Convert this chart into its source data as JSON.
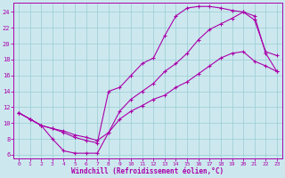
{
  "xlabel": "Windchill (Refroidissement éolien,°C)",
  "line_color": "#aa00aa",
  "bg_color": "#cce8ee",
  "grid_color": "#99ccd4",
  "xlim_min": -0.5,
  "xlim_max": 23.5,
  "ylim_min": 5.5,
  "ylim_max": 25.2,
  "xticks": [
    0,
    1,
    2,
    3,
    4,
    5,
    6,
    7,
    8,
    9,
    10,
    11,
    12,
    13,
    14,
    15,
    16,
    17,
    18,
    19,
    20,
    21,
    22,
    23
  ],
  "yticks": [
    6,
    8,
    10,
    12,
    14,
    16,
    18,
    20,
    22,
    24
  ],
  "line_upper_x": [
    0,
    1,
    2,
    3,
    4,
    5,
    6,
    7,
    8,
    9,
    10,
    11,
    12,
    13,
    14,
    15,
    16,
    17,
    18,
    19,
    20,
    21,
    22,
    23
  ],
  "line_upper_y": [
    11.3,
    10.5,
    9.7,
    9.3,
    8.8,
    8.2,
    7.8,
    7.5,
    14.0,
    14.5,
    16.0,
    17.5,
    18.2,
    21.0,
    23.5,
    24.5,
    24.7,
    24.7,
    24.5,
    24.2,
    24.0,
    23.5,
    18.8,
    16.5
  ],
  "line_mid_x": [
    0,
    1,
    2,
    3,
    4,
    5,
    6,
    7,
    8,
    9,
    10,
    11,
    12,
    13,
    14,
    15,
    16,
    17,
    18,
    19,
    20,
    21,
    22,
    23
  ],
  "line_mid_y": [
    11.3,
    10.5,
    9.7,
    8.0,
    6.5,
    6.2,
    6.2,
    6.2,
    8.8,
    11.5,
    13.0,
    14.0,
    15.0,
    16.5,
    17.5,
    18.8,
    20.5,
    21.8,
    22.5,
    23.2,
    24.0,
    23.0,
    19.0,
    18.5
  ],
  "line_lower_x": [
    0,
    1,
    2,
    3,
    4,
    5,
    6,
    7,
    8,
    9,
    10,
    11,
    12,
    13,
    14,
    15,
    16,
    17,
    18,
    19,
    20,
    21,
    22,
    23
  ],
  "line_lower_y": [
    11.3,
    10.5,
    9.7,
    9.3,
    9.0,
    8.5,
    8.2,
    7.8,
    8.8,
    10.5,
    11.5,
    12.2,
    13.0,
    13.5,
    14.5,
    15.2,
    16.2,
    17.2,
    18.2,
    18.8,
    19.0,
    17.8,
    17.2,
    16.5
  ]
}
